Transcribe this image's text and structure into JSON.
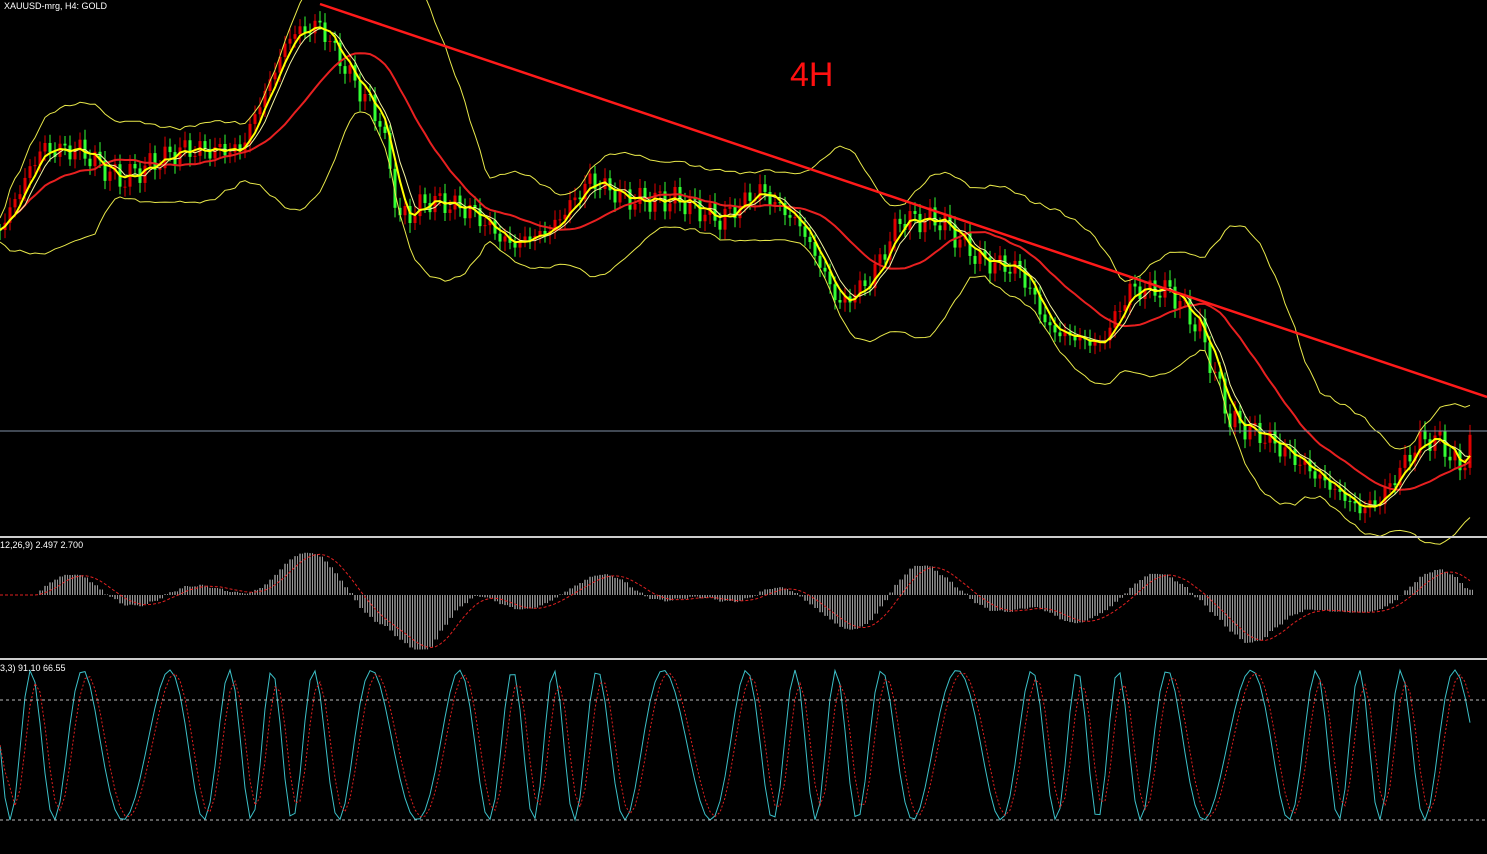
{
  "header": {
    "symbol": "XAUUSD-mrg, H4:  GOLD"
  },
  "annotation": "4H",
  "macd_panel": {
    "label": "12,26,9) 2.497 2.700"
  },
  "stochastic_panel": {
    "label": "3,3) 91.10 66.55"
  }
}
